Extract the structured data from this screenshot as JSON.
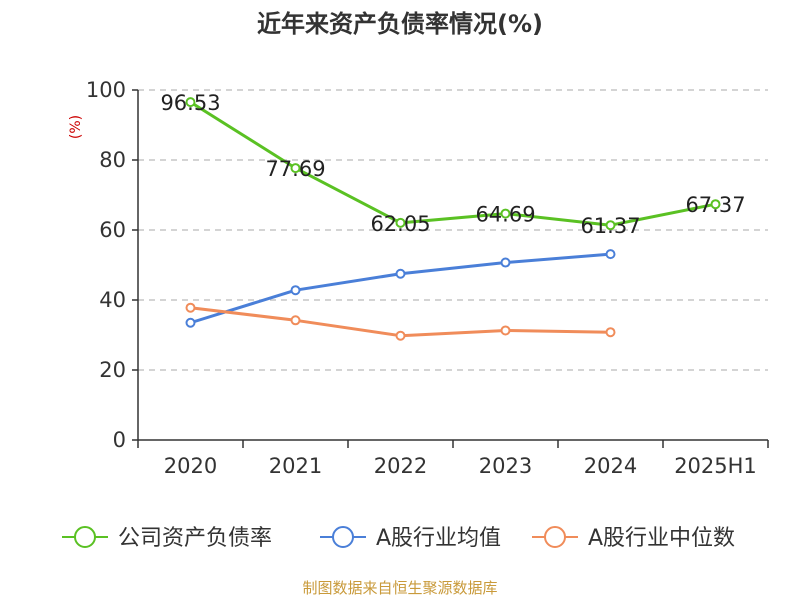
{
  "chart_data": {
    "type": "line",
    "title": "近年来资产负债率情况(%)",
    "ylabel": "(%)",
    "categories": [
      "2020",
      "2021",
      "2022",
      "2023",
      "2024",
      "2025H1"
    ],
    "ylim": [
      0,
      100
    ],
    "yticks": [
      0,
      20,
      40,
      60,
      80,
      100
    ],
    "grid": true,
    "legend_position": "bottom",
    "series": [
      {
        "name": "公司资产负债率",
        "color": "#5ac123",
        "values": [
          96.53,
          77.69,
          62.05,
          64.69,
          61.37,
          67.37
        ],
        "data_labels": [
          "96.53",
          "77.69",
          "62.05",
          "64.69",
          "61.37",
          "67.37"
        ]
      },
      {
        "name": "A股行业均值",
        "color": "#4a7fd8",
        "values": [
          33.5,
          42.8,
          47.5,
          50.7,
          53.1,
          null
        ]
      },
      {
        "name": "A股行业中位数",
        "color": "#f08c5a",
        "values": [
          37.8,
          34.2,
          29.8,
          31.3,
          30.8,
          null
        ]
      }
    ],
    "source_note": "制图数据来自恒生聚源数据库",
    "colors": {
      "title": "#333333",
      "axis_text": "#333333",
      "ylabel": "#cc0000",
      "grid": "#bbbbbb",
      "axis_line": "#333333",
      "source": "#c99a3a"
    }
  }
}
